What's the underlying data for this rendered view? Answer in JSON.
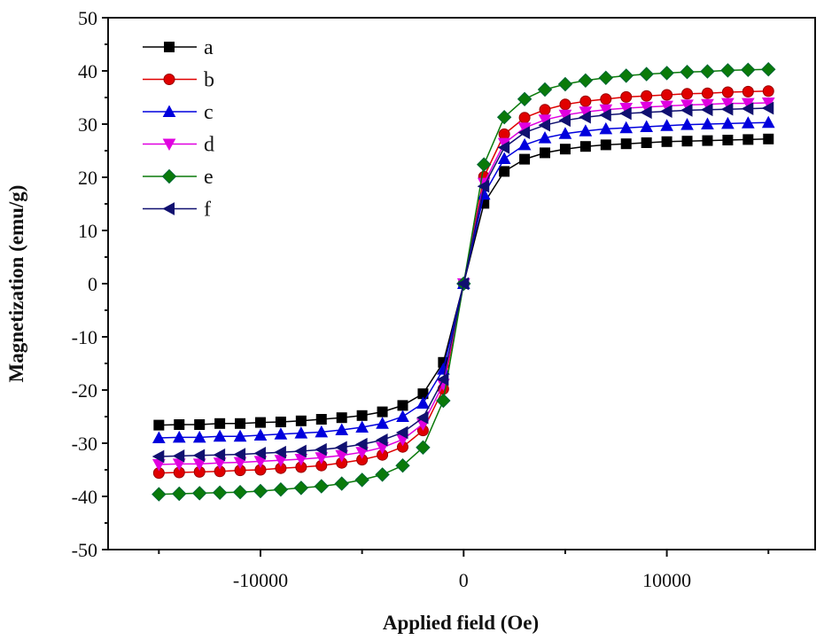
{
  "chart_data": {
    "type": "line",
    "title": "",
    "xlabel": "Applied field (Oe)",
    "ylabel": "Magnetization (emu/g)",
    "xlim": [
      -17500,
      17300
    ],
    "ylim": [
      -50,
      50
    ],
    "x_ticks": [
      -10000,
      0,
      10000
    ],
    "x_tick_labels": [
      "-10000",
      "0",
      "10000"
    ],
    "y_ticks": [
      -50,
      -40,
      -30,
      -20,
      -10,
      0,
      10,
      20,
      30,
      40,
      50
    ],
    "y_tick_labels": [
      "-50",
      "-40",
      "-30",
      "-20",
      "-10",
      "0",
      "10",
      "20",
      "30",
      "40",
      "50"
    ],
    "grid": false,
    "legend_position": "top-left",
    "x": [
      -15000,
      -14000,
      -13000,
      -12000,
      -11000,
      -10000,
      -9000,
      -8000,
      -7000,
      -6000,
      -5000,
      -4000,
      -3000,
      -2000,
      -1000,
      0,
      1000,
      2000,
      3000,
      4000,
      5000,
      6000,
      7000,
      8000,
      9000,
      10000,
      11000,
      12000,
      13000,
      14000,
      15000
    ],
    "series": [
      {
        "name": "a",
        "color": "#000000",
        "marker": "square",
        "values": [
          -26.6,
          -26.5,
          -26.5,
          -26.3,
          -26.3,
          -26.1,
          -26.0,
          -25.8,
          -25.5,
          -25.2,
          -24.8,
          -24.1,
          -22.9,
          -20.7,
          -14.8,
          0,
          15.1,
          21.1,
          23.4,
          24.6,
          25.3,
          25.8,
          26.1,
          26.3,
          26.5,
          26.7,
          26.8,
          26.9,
          27.0,
          27.1,
          27.2
        ]
      },
      {
        "name": "b",
        "color": "#e00000",
        "marker": "circle",
        "values": [
          -35.6,
          -35.5,
          -35.4,
          -35.3,
          -35.1,
          -35.0,
          -34.7,
          -34.5,
          -34.2,
          -33.7,
          -33.1,
          -32.2,
          -30.7,
          -27.6,
          -19.8,
          0,
          20.1,
          28.1,
          31.2,
          32.7,
          33.7,
          34.3,
          34.7,
          35.1,
          35.3,
          35.5,
          35.7,
          35.8,
          36.0,
          36.1,
          36.2
        ]
      },
      {
        "name": "c",
        "color": "#0000dd",
        "marker": "triangle-up",
        "values": [
          -29.0,
          -28.9,
          -28.9,
          -28.7,
          -28.7,
          -28.5,
          -28.3,
          -28.1,
          -27.9,
          -27.5,
          -27.0,
          -26.3,
          -25.0,
          -22.5,
          -16.1,
          0,
          16.8,
          23.5,
          26.1,
          27.4,
          28.2,
          28.7,
          29.1,
          29.3,
          29.5,
          29.7,
          29.9,
          30.0,
          30.1,
          30.2,
          30.3
        ]
      },
      {
        "name": "d",
        "color": "#e000e0",
        "marker": "triangle-down",
        "values": [
          -34.0,
          -33.9,
          -33.9,
          -33.7,
          -33.6,
          -33.4,
          -33.2,
          -33.0,
          -32.7,
          -32.3,
          -31.7,
          -30.8,
          -29.3,
          -26.4,
          -18.9,
          0,
          18.9,
          26.4,
          29.3,
          30.8,
          31.7,
          32.3,
          32.7,
          33.0,
          33.2,
          33.4,
          33.6,
          33.7,
          33.9,
          33.9,
          34.0
        ]
      },
      {
        "name": "e",
        "color": "#0a7a0a",
        "marker": "diamond",
        "values": [
          -39.6,
          -39.5,
          -39.4,
          -39.3,
          -39.2,
          -39.0,
          -38.7,
          -38.4,
          -38.1,
          -37.6,
          -36.9,
          -35.9,
          -34.2,
          -30.8,
          -22.0,
          0,
          22.4,
          31.3,
          34.7,
          36.5,
          37.5,
          38.2,
          38.7,
          39.1,
          39.4,
          39.6,
          39.8,
          39.9,
          40.1,
          40.2,
          40.3
        ]
      },
      {
        "name": "f",
        "color": "#101070",
        "marker": "triangle-left",
        "values": [
          -32.5,
          -32.4,
          -32.3,
          -32.2,
          -32.1,
          -31.9,
          -31.7,
          -31.5,
          -31.2,
          -30.8,
          -30.2,
          -29.4,
          -28.0,
          -25.2,
          -18.0,
          0,
          18.3,
          25.6,
          28.4,
          29.8,
          30.7,
          31.3,
          31.7,
          32.0,
          32.2,
          32.4,
          32.6,
          32.7,
          32.8,
          32.9,
          33.0
        ]
      }
    ]
  }
}
